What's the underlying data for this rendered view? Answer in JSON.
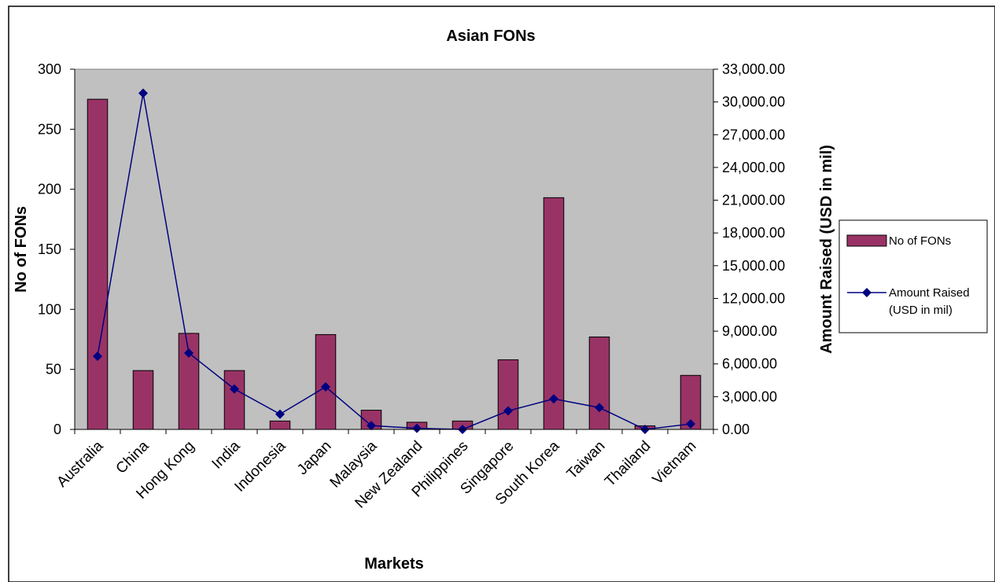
{
  "chart_data": {
    "type": "bar",
    "title": "Asian FONs",
    "xlabel": "Markets",
    "ylabel": "No of FONs",
    "y2label": "Amount Raised (USD in mil)",
    "categories": [
      "Australia",
      "China",
      "Hong Kong",
      "India",
      "Indonesia",
      "Japan",
      "Malaysia",
      "New Zealand",
      "Philippines",
      "Singapore",
      "South Korea",
      "Taiwan",
      "Thailand",
      "Vietnam"
    ],
    "ylim": [
      0,
      300
    ],
    "yticks": [
      "0",
      "50",
      "100",
      "150",
      "200",
      "250",
      "300"
    ],
    "y2lim": [
      0,
      33000
    ],
    "y2ticks": [
      "0.00",
      "3,000.00",
      "6,000.00",
      "9,000.00",
      "12,000.00",
      "15,000.00",
      "18,000.00",
      "21,000.00",
      "24,000.00",
      "27,000.00",
      "30,000.00",
      "33,000.00"
    ],
    "legend_position": "right",
    "plot_background": "#c0c0c0",
    "series": [
      {
        "name": "No of FONs",
        "type": "bar",
        "axis": "left",
        "color": "#993366",
        "values": [
          275,
          49,
          80,
          49,
          7,
          79,
          16,
          6,
          7,
          58,
          193,
          77,
          3,
          45
        ]
      },
      {
        "name": "Amount Raised (USD in mil)",
        "type": "line",
        "axis": "right",
        "color": "#000080",
        "marker": "diamond",
        "values": [
          6700,
          30800,
          7000,
          3700,
          1400,
          3900,
          350,
          100,
          0,
          1700,
          2800,
          2000,
          0,
          500
        ]
      }
    ]
  }
}
